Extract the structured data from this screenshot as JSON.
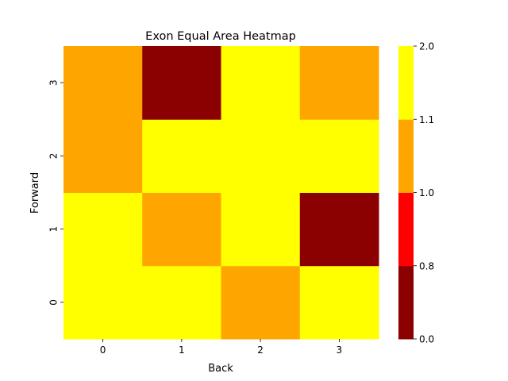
{
  "chart_data": {
    "type": "heatmap",
    "title": "Exon Equal Area Heatmap",
    "xlabel": "Back",
    "ylabel": "Forward",
    "x_categories": [
      "0",
      "1",
      "2",
      "3"
    ],
    "y_categories": [
      "0",
      "1",
      "2",
      "3"
    ],
    "values": [
      [
        2.0,
        1.1,
        1.0,
        1.1
      ],
      [
        1.1,
        1.0,
        1.1,
        0.5
      ],
      [
        1.0,
        1.1,
        2.0,
        1.1
      ],
      [
        1.0,
        0.5,
        1.1,
        1.0
      ]
    ],
    "colorbar": {
      "boundaries": [
        0.0,
        0.8,
        1.0,
        1.1,
        2.0
      ],
      "tick_labels": [
        "0.0",
        "0.8",
        "1.0",
        "1.1",
        "2.0"
      ],
      "colors": [
        "#8b0000",
        "#ff0000",
        "#ffa500",
        "#ffff00"
      ]
    },
    "grid": false
  }
}
